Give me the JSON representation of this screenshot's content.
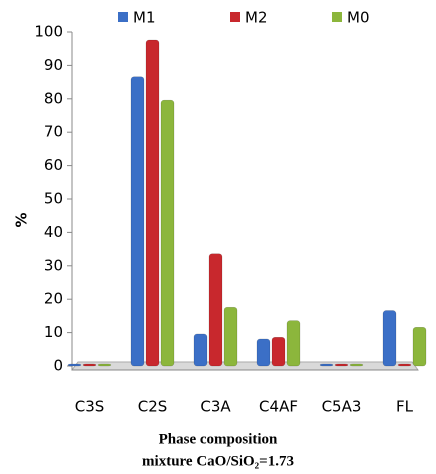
{
  "chart_data": {
    "type": "bar",
    "categories": [
      "C3S",
      "C2S",
      "C3A",
      "C4AF",
      "C5A3",
      "FL"
    ],
    "series": [
      {
        "name": "M1",
        "color": "#3b6fc6",
        "values": [
          0,
          86,
          9,
          7.5,
          0,
          16
        ]
      },
      {
        "name": "M2",
        "color": "#c8282d",
        "values": [
          0,
          97,
          33,
          8,
          0,
          0
        ]
      },
      {
        "name": "M0",
        "color": "#8cb63c",
        "values": [
          0,
          79,
          17,
          13,
          0,
          11
        ]
      }
    ],
    "ylabel": "%",
    "xlabel": [
      "Phase composition",
      "mixture CaO/SiO₂=1.73"
    ],
    "ylim": [
      0,
      100
    ],
    "yticks": [
      0,
      10,
      20,
      30,
      40,
      50,
      60,
      70,
      80,
      90,
      100
    ],
    "legend": "top"
  }
}
